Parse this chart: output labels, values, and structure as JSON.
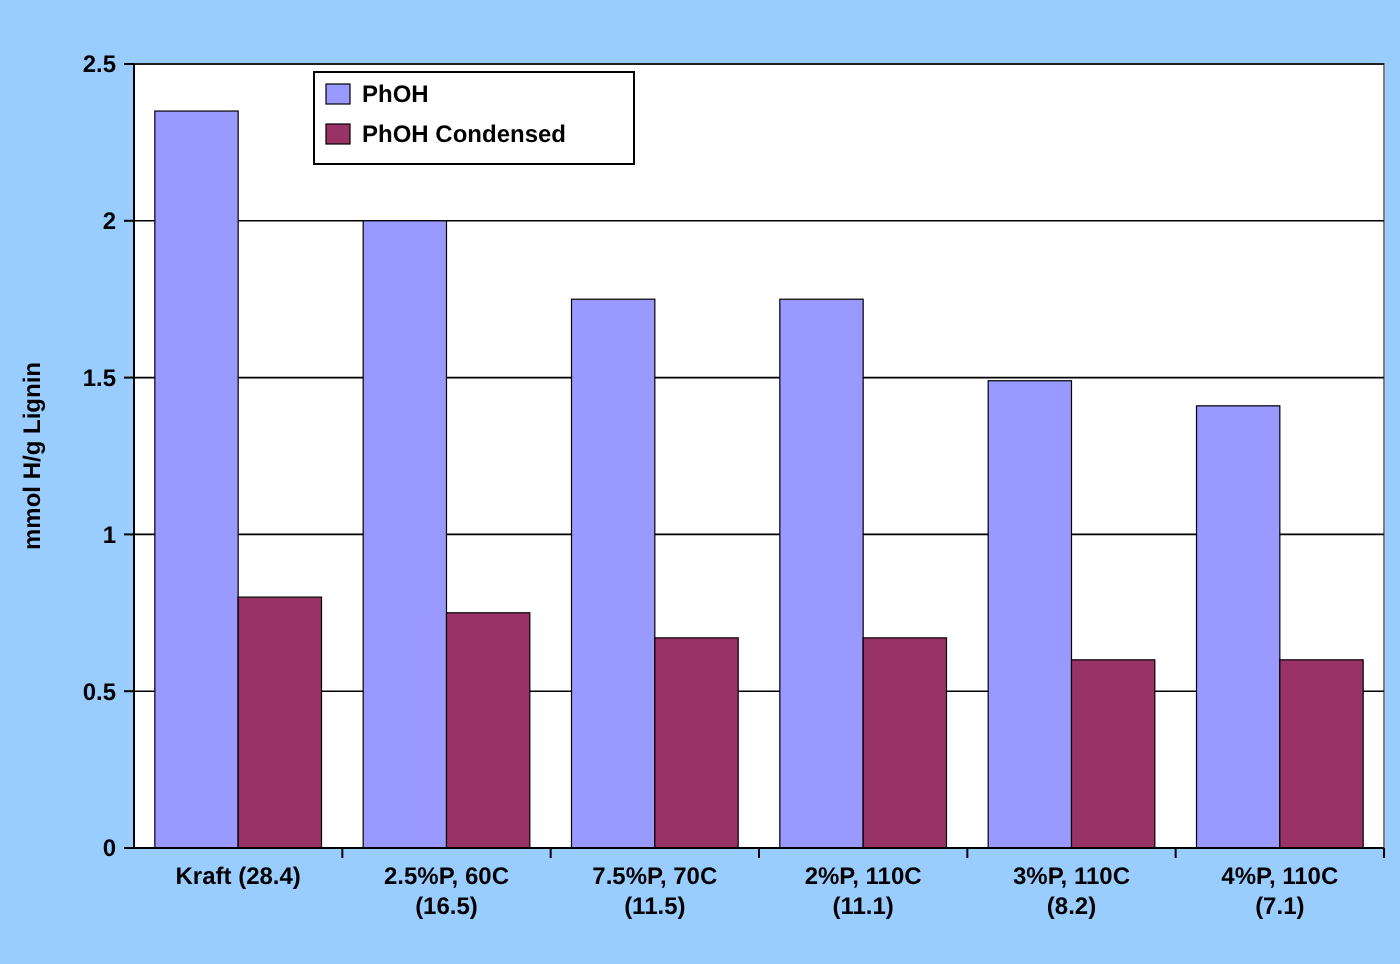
{
  "chart_data": {
    "type": "bar",
    "ylabel": "mmol H/g Lignin",
    "categories": [
      "Kraft (28.4)",
      "2.5%P, 60C\n(16.5)",
      "7.5%P, 70C\n(11.5)",
      "2%P, 110C\n(11.1)",
      "3%P, 110C\n(8.2)",
      "4%P, 110C\n(7.1)"
    ],
    "series": [
      {
        "name": "PhOH",
        "color": "#9999ff",
        "values": [
          2.35,
          2.0,
          1.75,
          1.75,
          1.49,
          1.41
        ]
      },
      {
        "name": "PhOH Condensed",
        "color": "#993366",
        "values": [
          0.8,
          0.75,
          0.67,
          0.67,
          0.6,
          0.6
        ]
      }
    ],
    "ylim": [
      0,
      2.5
    ],
    "yticks": [
      0,
      0.5,
      1,
      1.5,
      2,
      2.5
    ],
    "grid": "y",
    "legend": "top left"
  }
}
